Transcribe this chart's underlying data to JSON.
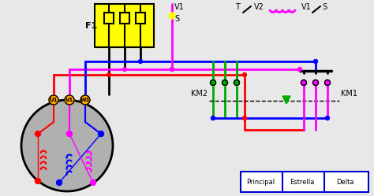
{
  "bg_color": "#e8e8e8",
  "colors": {
    "black": "#000000",
    "red": "#ff0000",
    "blue": "#0000ff",
    "magenta": "#ff00ff",
    "green": "#00aa00",
    "yellow": "#ffff00",
    "gray": "#b0b0b0",
    "orange": "#ffa500",
    "dark_blue": "#0000cc",
    "white": "#ffffff"
  },
  "labels": {
    "F1": "F1",
    "KM1": "KM1",
    "KM2": "KM2",
    "U1": "U1",
    "V1t": "V1",
    "W1": "W1",
    "V1_mid": "V1",
    "S_mid": "S",
    "T": "T",
    "V2": "V2",
    "V1_right": "V1",
    "S_right": "S",
    "Principal": "Principal",
    "Estrella": "Estrella",
    "Delta": "Delta"
  }
}
